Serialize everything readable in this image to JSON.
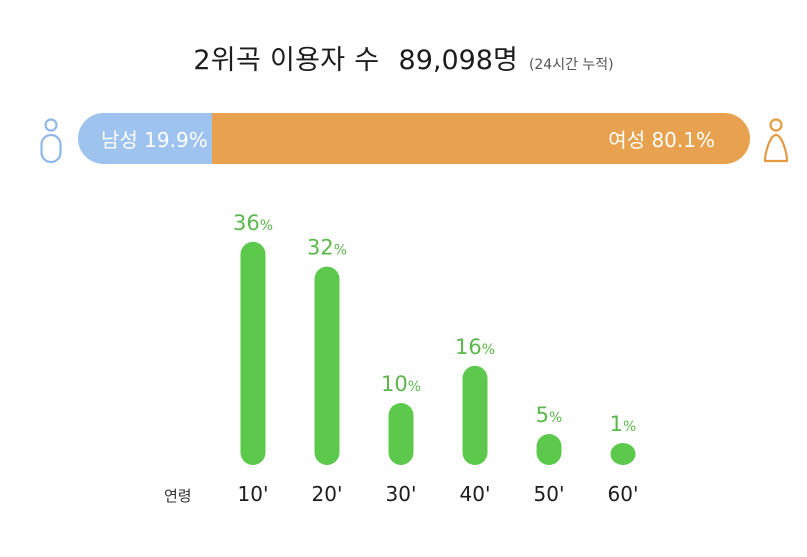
{
  "header": {
    "title": "2위곡 이용자 수",
    "count": "89,098명",
    "subtitle": "(24시간 누적)"
  },
  "gender": {
    "male_label": "남성 19.9%",
    "female_label": "여성 80.1%",
    "male_share": 19.9,
    "female_share": 80.1,
    "male_color": "#9ec3ef",
    "female_color": "#e8a24f",
    "male_icon": "male-person-icon",
    "female_icon": "female-person-icon"
  },
  "chart_data": {
    "type": "bar",
    "categories": [
      "10'",
      "20'",
      "30'",
      "40'",
      "50'",
      "60'"
    ],
    "values": [
      36,
      32,
      10,
      16,
      5,
      1
    ],
    "value_unit": "%",
    "xlabel": "연령",
    "bar_color": "#5cc94d",
    "label_color": "#5cb84c"
  }
}
